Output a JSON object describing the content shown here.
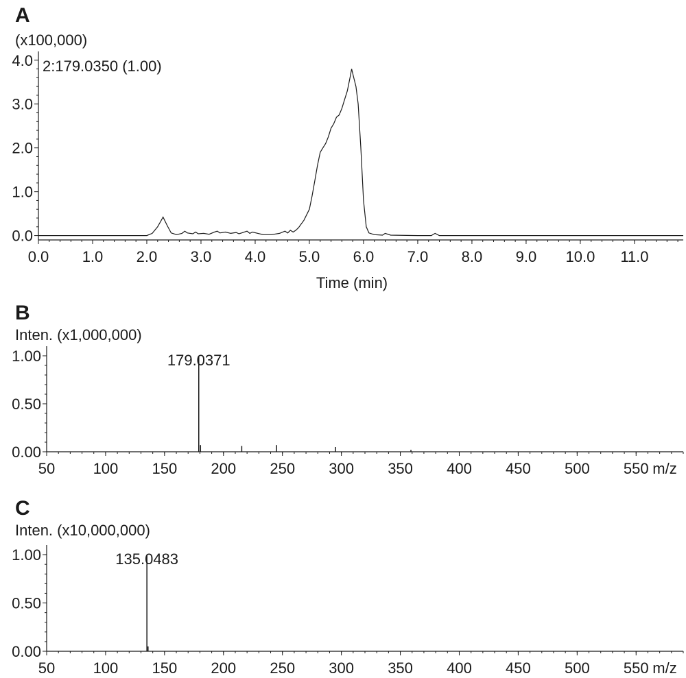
{
  "chart_data": [
    {
      "panel": "A",
      "type": "line",
      "multiplier": "(x100,000)",
      "series": [
        {
          "name": "2:179.0350 (1.00)",
          "x": [
            0.0,
            1.0,
            2.0,
            2.1,
            2.2,
            2.3,
            2.38,
            2.45,
            2.55,
            2.65,
            2.7,
            2.75,
            2.85,
            2.9,
            2.95,
            3.05,
            3.15,
            3.25,
            3.3,
            3.35,
            3.45,
            3.55,
            3.65,
            3.7,
            3.75,
            3.85,
            3.9,
            3.95,
            4.05,
            4.15,
            4.3,
            4.45,
            4.55,
            4.6,
            4.65,
            4.7,
            4.75,
            4.8,
            4.9,
            5.0,
            5.05,
            5.1,
            5.15,
            5.2,
            5.25,
            5.3,
            5.35,
            5.4,
            5.45,
            5.5,
            5.55,
            5.6,
            5.65,
            5.7,
            5.75,
            5.78,
            5.82,
            5.86,
            5.9,
            5.95,
            6.0,
            6.05,
            6.1,
            6.2,
            6.35,
            6.4,
            6.5,
            7.0,
            7.25,
            7.32,
            7.4,
            8.0,
            12.0
          ],
          "y": [
            0.0,
            0.0,
            0.0,
            0.05,
            0.2,
            0.42,
            0.22,
            0.06,
            0.02,
            0.05,
            0.1,
            0.06,
            0.04,
            0.08,
            0.04,
            0.05,
            0.03,
            0.08,
            0.1,
            0.06,
            0.08,
            0.05,
            0.07,
            0.04,
            0.06,
            0.1,
            0.05,
            0.08,
            0.05,
            0.02,
            0.02,
            0.05,
            0.1,
            0.06,
            0.12,
            0.08,
            0.12,
            0.18,
            0.35,
            0.6,
            0.9,
            1.25,
            1.6,
            1.9,
            2.0,
            2.1,
            2.25,
            2.45,
            2.55,
            2.7,
            2.75,
            2.9,
            3.1,
            3.3,
            3.6,
            3.8,
            3.6,
            3.4,
            3.0,
            2.0,
            0.8,
            0.2,
            0.06,
            0.02,
            0.01,
            0.05,
            0.01,
            0.0,
            0.0,
            0.05,
            0.0,
            0.0,
            0.0
          ]
        }
      ],
      "xlabel": "Time (min)",
      "ylabel": "",
      "xlim": [
        0,
        11.9
      ],
      "ylim": [
        -0.1,
        4.2
      ],
      "xticks": [
        "0.0",
        "1.0",
        "2.0",
        "3.0",
        "4.0",
        "5.0",
        "6.0",
        "7.0",
        "8.0",
        "9.0",
        "10.0",
        "11.0"
      ],
      "yticks": [
        "0.0",
        "1.0",
        "2.0",
        "3.0",
        "4.0"
      ]
    },
    {
      "panel": "B",
      "type": "bar",
      "multiplier": "Inten. (x1,000,000)",
      "peaks": [
        {
          "mz": 179.0371,
          "intensity": 1.0,
          "label": "179.0371"
        },
        {
          "mz": 180.5,
          "intensity": 0.07
        },
        {
          "mz": 215.5,
          "intensity": 0.06
        },
        {
          "mz": 245.0,
          "intensity": 0.07
        },
        {
          "mz": 295.0,
          "intensity": 0.05
        },
        {
          "mz": 359.0,
          "intensity": 0.02
        }
      ],
      "xlabel": "m/z",
      "xlim": [
        50,
        590
      ],
      "ylim": [
        0,
        1.1
      ],
      "xticks": [
        "50",
        "100",
        "150",
        "200",
        "250",
        "300",
        "350",
        "400",
        "450",
        "500",
        "550"
      ],
      "yticks": [
        "0.00",
        "0.50",
        "1.00"
      ]
    },
    {
      "panel": "C",
      "type": "bar",
      "multiplier": "Inten. (x10,000,000)",
      "peaks": [
        {
          "mz": 135.0483,
          "intensity": 1.0,
          "label": "135.0483"
        },
        {
          "mz": 136.0,
          "intensity": 0.05
        }
      ],
      "xlabel": "m/z",
      "xlim": [
        50,
        590
      ],
      "ylim": [
        0,
        1.1
      ],
      "xticks": [
        "50",
        "100",
        "150",
        "200",
        "250",
        "300",
        "350",
        "400",
        "450",
        "500",
        "550"
      ],
      "yticks": [
        "0.00",
        "0.50",
        "1.00"
      ]
    }
  ]
}
